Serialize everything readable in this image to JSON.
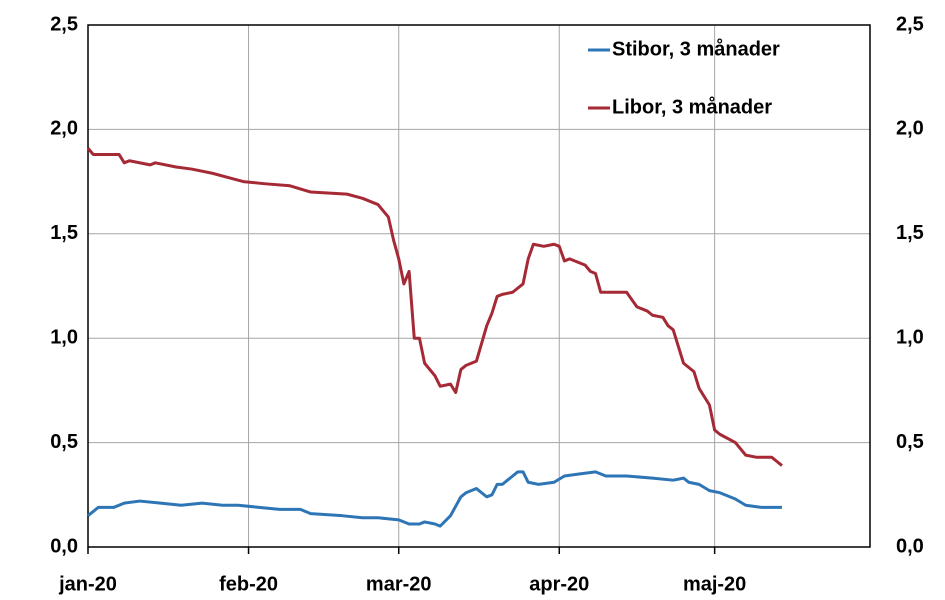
{
  "chart_data": {
    "type": "line",
    "xlim": [
      0,
      151
    ],
    "xticks": [
      {
        "value": 0,
        "label": "jan-20"
      },
      {
        "value": 31,
        "label": "feb-20"
      },
      {
        "value": 60,
        "label": "mar-20"
      },
      {
        "value": 91,
        "label": "apr-20"
      },
      {
        "value": 121,
        "label": "maj-20"
      }
    ],
    "ylim": [
      0,
      2.5
    ],
    "yticks": [
      {
        "value": 0,
        "label": "0,0"
      },
      {
        "value": 0.5,
        "label": "0,5"
      },
      {
        "value": 1,
        "label": "1,0"
      },
      {
        "value": 1.5,
        "label": "1,5"
      },
      {
        "value": 2,
        "label": "2,0"
      },
      {
        "value": 2.5,
        "label": "2,5"
      }
    ],
    "y2lim": [
      0,
      2.5
    ],
    "y2ticks": [
      {
        "value": 0,
        "label": "0,0"
      },
      {
        "value": 0.5,
        "label": "0,5"
      },
      {
        "value": 1,
        "label": "1,0"
      },
      {
        "value": 1.5,
        "label": "1,5"
      },
      {
        "value": 2,
        "label": "2,0"
      },
      {
        "value": 2.5,
        "label": "2,5"
      }
    ],
    "grid": true,
    "legend": "top-right",
    "series": [
      {
        "name": "Stibor, 3 månader",
        "color": "#2e75b6",
        "x": [
          0,
          2,
          5,
          7,
          10,
          14,
          18,
          22,
          26,
          29,
          33,
          37,
          41,
          43,
          49,
          53,
          56,
          60,
          62,
          64,
          65,
          67,
          68,
          70,
          72,
          73,
          75,
          77,
          78,
          79,
          80,
          82,
          83,
          84,
          85,
          87,
          90,
          92,
          95,
          98,
          100,
          104,
          109,
          113,
          115,
          116,
          118,
          120,
          122,
          125,
          127,
          130,
          134
        ],
        "values": [
          0.15,
          0.19,
          0.19,
          0.21,
          0.22,
          0.21,
          0.2,
          0.21,
          0.2,
          0.2,
          0.19,
          0.18,
          0.18,
          0.16,
          0.15,
          0.14,
          0.14,
          0.13,
          0.11,
          0.11,
          0.12,
          0.11,
          0.1,
          0.15,
          0.24,
          0.26,
          0.28,
          0.24,
          0.25,
          0.3,
          0.3,
          0.34,
          0.36,
          0.36,
          0.31,
          0.3,
          0.31,
          0.34,
          0.35,
          0.36,
          0.34,
          0.34,
          0.33,
          0.32,
          0.33,
          0.31,
          0.3,
          0.27,
          0.26,
          0.23,
          0.2,
          0.19,
          0.19
        ]
      },
      {
        "name": "Libor, 3 månader",
        "color": "#a52a36",
        "x": [
          0,
          1,
          6,
          7,
          8,
          12,
          13,
          17,
          20,
          24,
          27,
          30,
          34,
          39,
          43,
          50,
          53,
          56,
          57,
          58,
          59,
          60,
          61,
          62,
          63,
          64,
          65,
          67,
          68,
          70,
          71,
          72,
          73,
          75,
          77,
          78,
          79,
          80,
          82,
          84,
          85,
          86,
          88,
          90,
          91,
          92,
          93,
          96,
          97,
          98,
          99,
          104,
          106,
          108,
          109,
          111,
          112,
          113,
          115,
          117,
          118,
          120,
          121,
          122,
          125,
          127,
          129,
          132,
          133,
          134
        ],
        "values": [
          1.91,
          1.88,
          1.88,
          1.84,
          1.85,
          1.83,
          1.84,
          1.82,
          1.81,
          1.79,
          1.77,
          1.75,
          1.74,
          1.73,
          1.7,
          1.69,
          1.67,
          1.64,
          1.61,
          1.58,
          1.47,
          1.38,
          1.26,
          1.32,
          1.0,
          1.0,
          0.88,
          0.82,
          0.77,
          0.78,
          0.74,
          0.85,
          0.87,
          0.89,
          1.06,
          1.12,
          1.2,
          1.21,
          1.22,
          1.26,
          1.38,
          1.45,
          1.44,
          1.45,
          1.44,
          1.37,
          1.38,
          1.35,
          1.32,
          1.31,
          1.22,
          1.22,
          1.15,
          1.13,
          1.11,
          1.1,
          1.06,
          1.04,
          0.88,
          0.84,
          0.76,
          0.68,
          0.56,
          0.54,
          0.5,
          0.44,
          0.43,
          0.43,
          0.41,
          0.39
        ]
      }
    ]
  }
}
